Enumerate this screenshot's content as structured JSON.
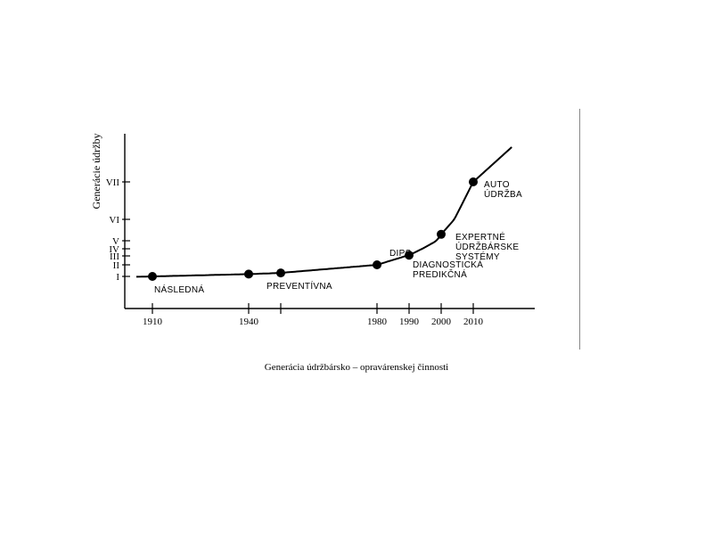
{
  "caption": "Generácia údržbársko – opravárenskej činnosti",
  "chart_data": {
    "type": "line",
    "ylabel": "Generácie údržby",
    "xlabel": "",
    "x_ticks": [
      1910,
      1940,
      1950,
      1980,
      1990,
      2000,
      2010
    ],
    "x_tick_labels": [
      "1910",
      "1940",
      "",
      "1980",
      "1990",
      "2000",
      "2010"
    ],
    "xlim": [
      1900,
      2025
    ],
    "y_ticks": [
      1,
      2,
      3,
      4,
      5,
      6,
      7
    ],
    "y_tick_labels": [
      "I",
      "II",
      "III",
      "IV",
      "V",
      "VI",
      "VII"
    ],
    "series": [
      {
        "points": [
          {
            "x": 1910,
            "y": 1.0,
            "label": [
              "NÁSLEDNÁ"
            ]
          },
          {
            "x": 1940,
            "y": 1.2,
            "label": []
          },
          {
            "x": 1950,
            "y": 1.3,
            "label": [
              "PREVENTÍVNA"
            ]
          },
          {
            "x": 1980,
            "y": 2.0,
            "label": [
              "DIPS"
            ]
          },
          {
            "x": 1990,
            "y": 3.1,
            "label": [
              "DIAGNOSTICKÁ",
              "PREDIKČNÁ"
            ]
          },
          {
            "x": 2000,
            "y": 5.3,
            "label": [
              "EXPERTNÉ",
              "ÚDRŽBÁRSKE",
              "SYSTÉMY"
            ]
          },
          {
            "x": 2010,
            "y": 7.0,
            "label": [
              "AUTO",
              "ÚDRŽBA"
            ]
          }
        ]
      }
    ],
    "curve_extends_to": 2022,
    "grid": false,
    "legend": "none"
  }
}
